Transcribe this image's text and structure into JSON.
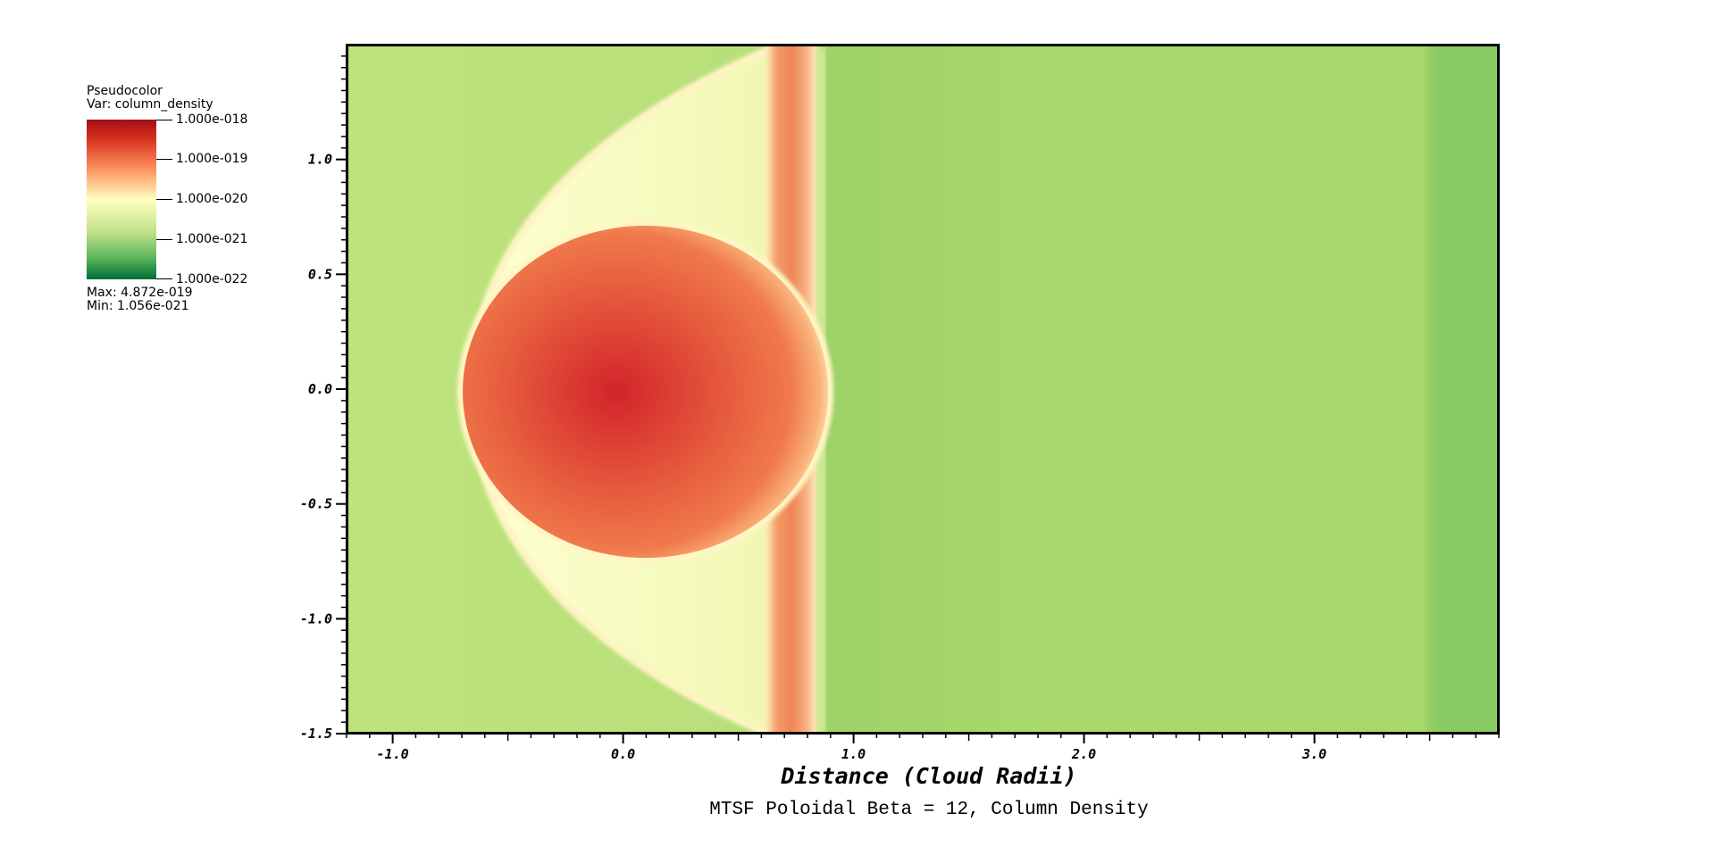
{
  "legend": {
    "type_label": "Pseudocolor",
    "var_label": "Var: column_density",
    "ticks": [
      "1.000e-018",
      "1.000e-019",
      "1.000e-020",
      "1.000e-021",
      "1.000e-022"
    ],
    "max_label": "Max:  4.872e-019",
    "min_label": "Min:  1.056e-021",
    "colormap": [
      "#b2182b",
      "#e34a33",
      "#fc8d59",
      "#fee08b",
      "#ffffbf",
      "#d9ef8b",
      "#a6d96a",
      "#66bd63",
      "#1a9850",
      "#006837"
    ]
  },
  "chart_data": {
    "type": "heatmap",
    "title": "MTSF Poloidal Beta = 12, Column Density",
    "xlabel": "Distance (Cloud Radii)",
    "ylabel": "",
    "xlim": [
      -1.2,
      3.8
    ],
    "ylim": [
      -1.5,
      1.5
    ],
    "x_ticks": [
      -1.0,
      0.0,
      1.0,
      2.0,
      3.0
    ],
    "x_tick_labels": [
      "-1.0",
      "0.0",
      "1.0",
      "2.0",
      "3.0"
    ],
    "y_ticks": [
      1.0,
      0.5,
      0.0,
      -0.5,
      -1.0,
      -1.5
    ],
    "y_tick_labels": [
      "1.0",
      "0.5",
      "0.0",
      "-0.5",
      "-1.0",
      "-1.5"
    ],
    "variable": "column_density",
    "scale": "log",
    "color_range": [
      1e-22,
      1e-18
    ],
    "max": 4.872e-19,
    "min": 1.056e-21,
    "grid": false,
    "features": {
      "cloud_core": {
        "x": 0.0,
        "y": 0.0,
        "radius": 0.7
      },
      "bow_shock_vertex_x": -0.68,
      "dense_band_x": 0.72,
      "upstream_boundary_x": 0.85,
      "downstream_edge_x": 3.48
    },
    "colors": {
      "background_upstream": "#b8e07a",
      "background_downstream": "#a5d96a",
      "edge_band": "#88cc66",
      "shell": "#fff6c2",
      "core": "#d42b2b"
    }
  }
}
